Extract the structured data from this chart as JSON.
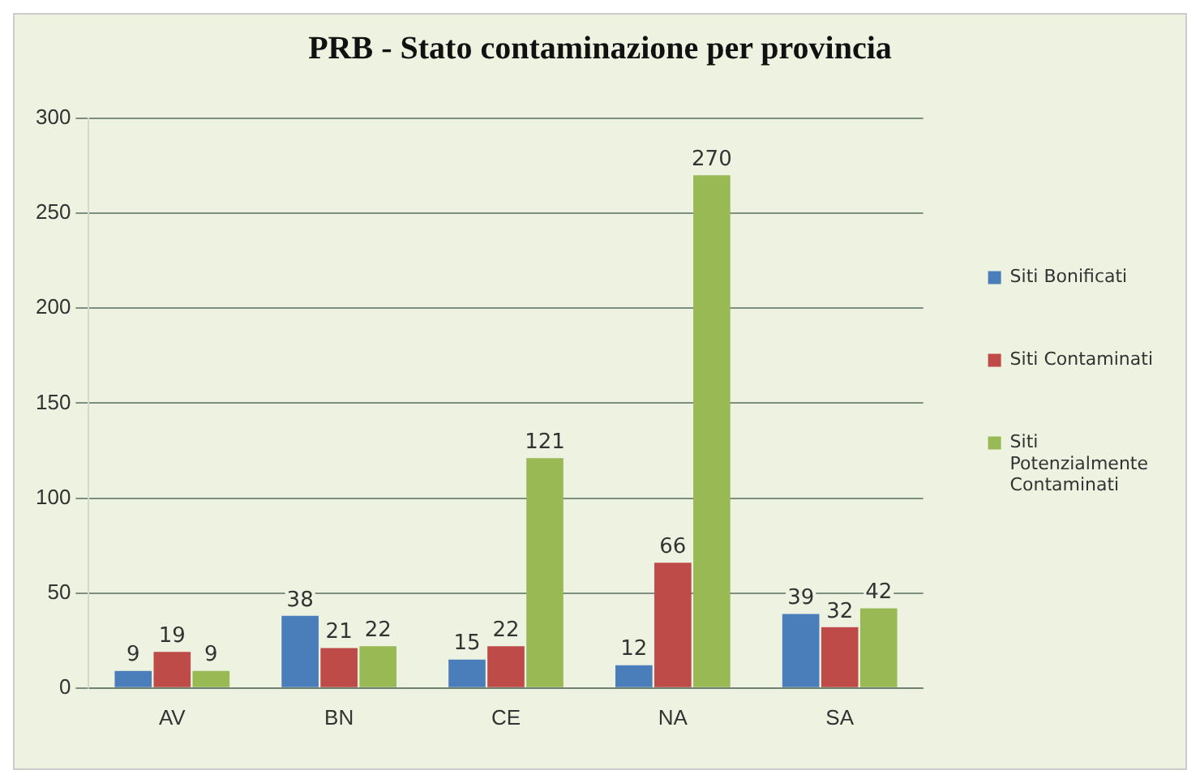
{
  "chart_data": {
    "type": "bar",
    "title": "PRB - Stato contaminazione per provincia",
    "categories": [
      "AV",
      "BN",
      "CE",
      "NA",
      "SA"
    ],
    "series": [
      {
        "name": "Siti Bonificati",
        "color": "#4a7ebb",
        "values": [
          9,
          38,
          15,
          12,
          39
        ]
      },
      {
        "name": "Siti Contaminati",
        "color": "#be4b48",
        "values": [
          19,
          21,
          22,
          66,
          32
        ]
      },
      {
        "name": "Siti Potenzialmente Contaminati",
        "color": "#98b954",
        "values": [
          9,
          22,
          121,
          270,
          42
        ]
      }
    ],
    "ylim": [
      0,
      300
    ],
    "yticks": [
      0,
      50,
      100,
      150,
      200,
      250,
      300
    ],
    "grid": "y",
    "legend": "right",
    "data_labels": true
  }
}
